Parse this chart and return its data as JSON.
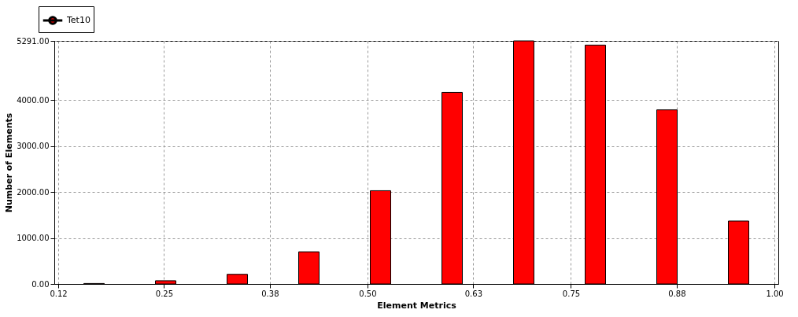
{
  "chart_data": {
    "type": "bar",
    "xlabel": "Element Metrics",
    "ylabel": "Number of Elements",
    "x": [
      0.164,
      0.252,
      0.34,
      0.428,
      0.516,
      0.604,
      0.692,
      0.78,
      0.868,
      0.956
    ],
    "series": [
      {
        "name": "Tet10",
        "color": "#ff0000",
        "values": [
          10,
          70,
          210,
          700,
          2030,
          4170,
          5291,
          5200,
          3790,
          1370
        ]
      }
    ],
    "xlim": [
      0.12,
      1.0
    ],
    "xticks": [
      0.12,
      0.25,
      0.38,
      {
        "value": 0.5,
        "label": "0.50"
      },
      0.63,
      0.75,
      0.88,
      {
        "value": 1.0,
        "label": "1.00"
      }
    ],
    "ylim": [
      0,
      5291
    ],
    "yticks": [
      {
        "value": 0,
        "label": "0.00"
      },
      {
        "value": 1000,
        "label": "1000.00"
      },
      {
        "value": 2000,
        "label": "2000.00"
      },
      {
        "value": 3000,
        "label": "3000.00"
      },
      {
        "value": 4000,
        "label": "4000.00"
      },
      {
        "value": 5291,
        "label": "5291.00"
      }
    ],
    "grid": true,
    "legend": "top left"
  }
}
